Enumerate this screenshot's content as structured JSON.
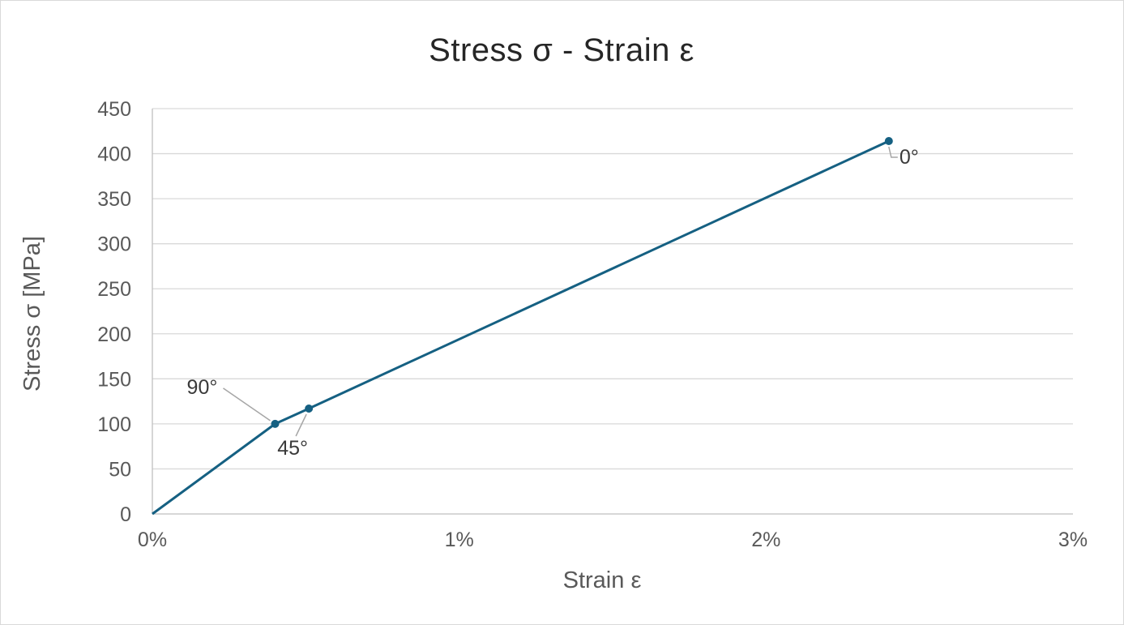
{
  "page": {
    "background": "#ffffff",
    "border_color": "#d9d9d9"
  },
  "chart_data": {
    "type": "line",
    "title": "Stress σ - Strain ε",
    "xlabel": "Strain ε",
    "ylabel": "Stress σ [MPa]",
    "xlim_pct": [
      0,
      3
    ],
    "ylim": [
      0,
      450
    ],
    "x_ticks": [
      {
        "value": 0,
        "label": "0%"
      },
      {
        "value": 1,
        "label": "1%"
      },
      {
        "value": 2,
        "label": "2%"
      },
      {
        "value": 3,
        "label": "3%"
      }
    ],
    "y_ticks": [
      {
        "value": 0,
        "label": "0"
      },
      {
        "value": 50,
        "label": "50"
      },
      {
        "value": 100,
        "label": "100"
      },
      {
        "value": 150,
        "label": "150"
      },
      {
        "value": 200,
        "label": "200"
      },
      {
        "value": 250,
        "label": "250"
      },
      {
        "value": 300,
        "label": "300"
      },
      {
        "value": 350,
        "label": "350"
      },
      {
        "value": 400,
        "label": "400"
      },
      {
        "value": 450,
        "label": "450"
      }
    ],
    "grid": "horizontal-only",
    "legend": "none",
    "series": [
      {
        "name": "stress-strain-curve",
        "color": "#156082",
        "marker": "circle",
        "points": [
          {
            "strain_pct": 0,
            "stress_mpa": 0,
            "label": null
          },
          {
            "strain_pct": 0.4,
            "stress_mpa": 100,
            "label": "90°"
          },
          {
            "strain_pct": 0.51,
            "stress_mpa": 117,
            "label": "45°"
          },
          {
            "strain_pct": 2.4,
            "stress_mpa": 414,
            "label": "0°"
          }
        ]
      }
    ]
  },
  "styles": {
    "grid_color": "#d9d9d9",
    "axis_color": "#bfbfbf",
    "tick_color": "#595959",
    "title_color": "#262626",
    "data_label_color": "#3a3a3a",
    "leader_color": "#a6a6a6",
    "series_color": "#156082"
  }
}
